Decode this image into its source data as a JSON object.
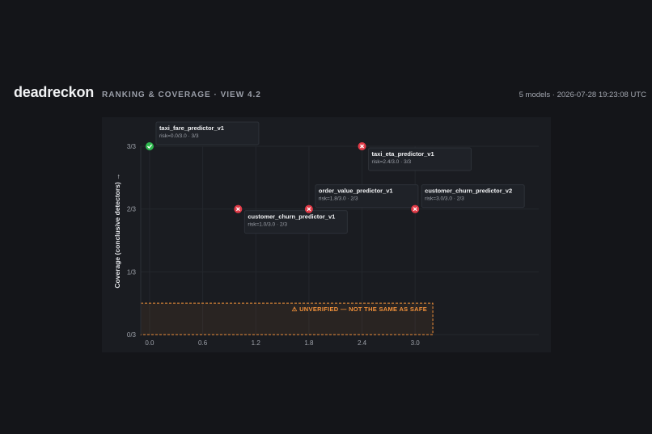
{
  "header": {
    "brand": "deadreckon",
    "subtitle": "RANKING & COVERAGE · VIEW 4.2",
    "meta": "5 models · 2026-07-28 19:23:08 UTC"
  },
  "colors": {
    "pass": "#2fb84e",
    "fail": "#e23b48",
    "warning": "#f0903a"
  },
  "chart_data": {
    "type": "scatter",
    "title": "",
    "xlabel": "",
    "ylabel": "Coverage (conclusive detectors) →",
    "xlim": [
      -0.1,
      3.3
    ],
    "ylim": [
      0,
      3
    ],
    "x_ticks": [
      0.0,
      0.6,
      1.2,
      1.8,
      2.4,
      3.0
    ],
    "x_tick_labels": [
      "0.0",
      "0.6",
      "1.2",
      "1.8",
      "2.4",
      "3.0"
    ],
    "y_ticks": [
      0,
      1,
      2,
      3
    ],
    "y_tick_labels": [
      "0/3",
      "1/3",
      "2/3",
      "3/3"
    ],
    "grid": true,
    "unverified_zone": {
      "label": "⚠ UNVERIFIED — NOT THE SAME AS SAFE",
      "y_max": 0.5,
      "x_max": 3.2
    },
    "points": [
      {
        "name": "taxi_fare_predictor_v1",
        "x": 0.0,
        "y": 3,
        "detail": "risk=0.0/3.0 · 3/3",
        "status": "pass"
      },
      {
        "name": "taxi_eta_predictor_v1",
        "x": 2.4,
        "y": 3,
        "detail": "risk=2.4/3.0 · 3/3",
        "status": "fail"
      },
      {
        "name": "customer_churn_predictor_v1",
        "x": 1.0,
        "y": 2,
        "detail": "risk=1.0/3.0 · 2/3",
        "status": "fail"
      },
      {
        "name": "order_value_predictor_v1",
        "x": 1.8,
        "y": 2,
        "detail": "risk=1.8/3.0 · 2/3",
        "status": "fail"
      },
      {
        "name": "customer_churn_predictor_v2",
        "x": 3.0,
        "y": 2,
        "detail": "risk=3.0/3.0 · 2/3",
        "status": "fail"
      }
    ]
  }
}
